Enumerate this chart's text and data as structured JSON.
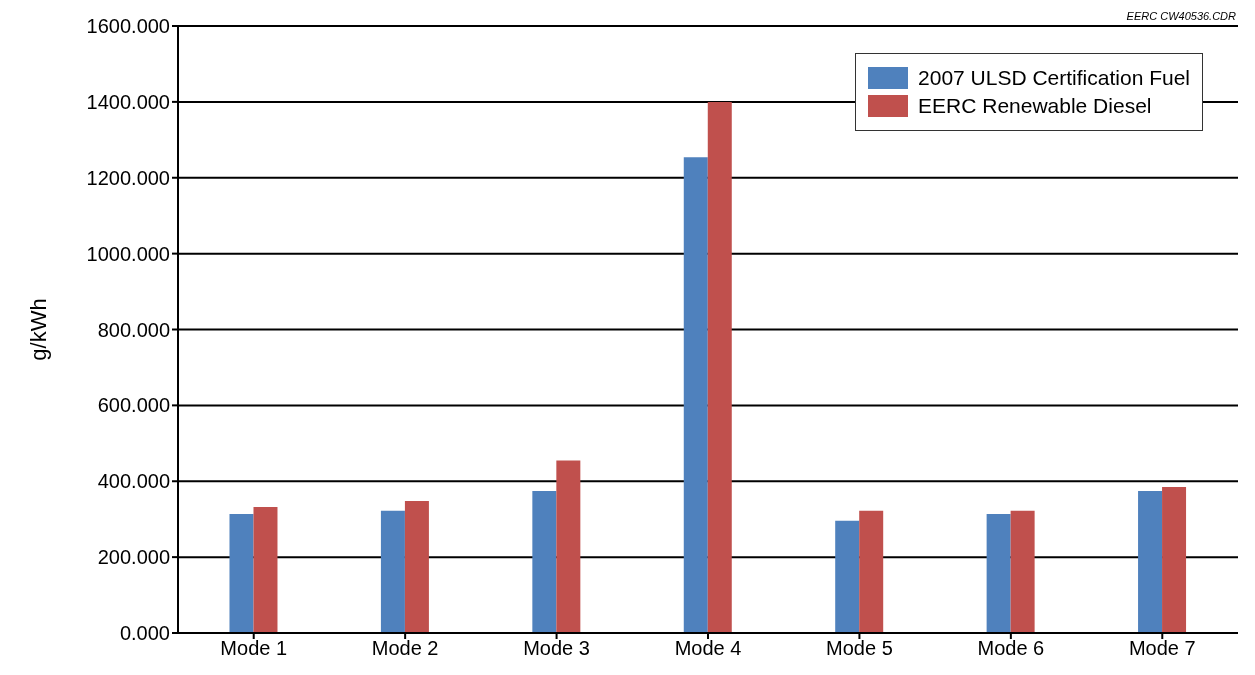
{
  "chart_data": {
    "type": "bar",
    "ylabel": "g/kWh",
    "annotations": [
      "EERC CW40536.CDR"
    ],
    "categories": [
      "Mode 1",
      "Mode 2",
      "Mode 3",
      "Mode 4",
      "Mode 5",
      "Mode 6",
      "Mode 7"
    ],
    "series": [
      {
        "name": "2007 ULSD Certification Fuel",
        "color": "#4f81bd",
        "values": [
          314,
          322,
          374,
          1254,
          296,
          314,
          374
        ]
      },
      {
        "name": "EERC Renewable Diesel",
        "color": "#c0504d",
        "values": [
          332,
          348,
          455,
          1400,
          322,
          322,
          385
        ]
      }
    ],
    "ylim": [
      0,
      1600
    ],
    "yticks": [
      {
        "value": 0,
        "label": "0.000"
      },
      {
        "value": 200,
        "label": "200.000"
      },
      {
        "value": 400,
        "label": "400.000"
      },
      {
        "value": 600,
        "label": "600.000"
      },
      {
        "value": 800,
        "label": "800.000"
      },
      {
        "value": 1000,
        "label": "1000.000"
      },
      {
        "value": 1200,
        "label": "1200.000"
      },
      {
        "value": 1400,
        "label": "1400.000"
      },
      {
        "value": 1600,
        "label": "1600.000"
      }
    ],
    "grid": "y",
    "legend": "top right"
  }
}
